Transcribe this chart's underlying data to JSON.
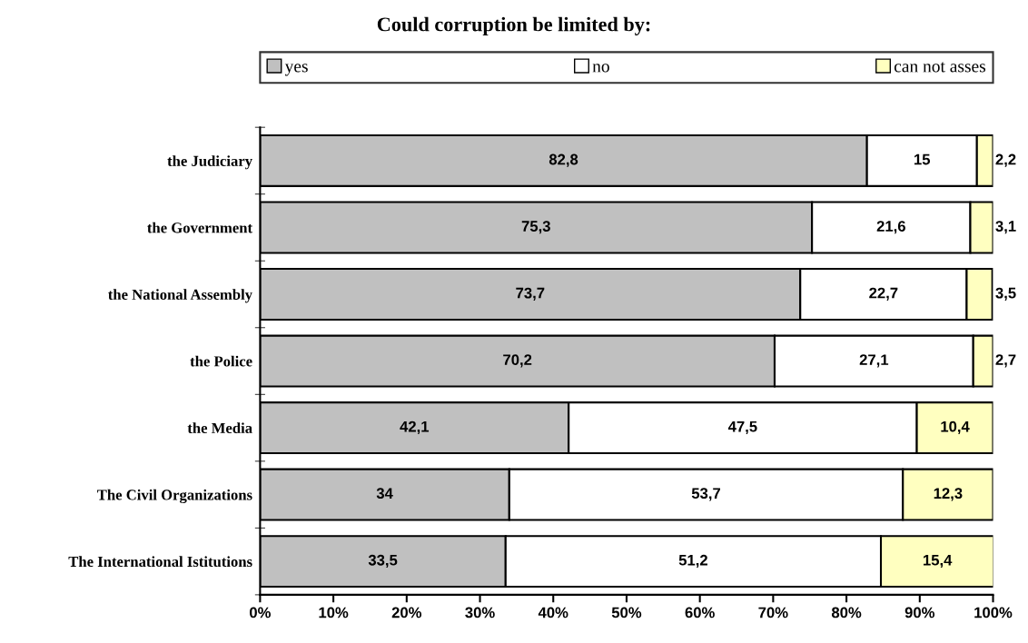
{
  "chart_data": {
    "type": "bar",
    "orientation": "horizontal",
    "stacked": true,
    "title": "Could corruption be limited by:",
    "categories": [
      "the Judiciary",
      "the Government",
      "the National Assembly",
      "the Police",
      "the Media",
      "The Civil Organizations",
      "The International Istitutions"
    ],
    "series": [
      {
        "name": "yes",
        "color": "#c0c0c0",
        "values": [
          82.8,
          75.3,
          73.7,
          70.2,
          42.1,
          34,
          33.5
        ],
        "value_labels": [
          "82,8",
          "75,3",
          "73,7",
          "70,2",
          "42,1",
          "34",
          "33,5"
        ]
      },
      {
        "name": "no",
        "color": "#ffffff",
        "values": [
          15,
          21.6,
          22.7,
          27.1,
          47.5,
          53.7,
          51.2
        ],
        "value_labels": [
          "15",
          "21,6",
          "22,7",
          "27,1",
          "47,5",
          "53,7",
          "51,2"
        ]
      },
      {
        "name": "can not asses",
        "color": "#ffffc0",
        "values": [
          2.2,
          3.1,
          3.5,
          2.7,
          10.4,
          12.3,
          15.4
        ],
        "value_labels": [
          "2,2",
          "3,1",
          "3,5",
          "2,7",
          "10,4",
          "12,3",
          "15,4"
        ]
      }
    ],
    "xlim": [
      0,
      100
    ],
    "xticks": [
      {
        "value": 0,
        "label": "0%"
      },
      {
        "value": 10,
        "label": "10%"
      },
      {
        "value": 20,
        "label": "20%"
      },
      {
        "value": 30,
        "label": "30%"
      },
      {
        "value": 40,
        "label": "40%"
      },
      {
        "value": 50,
        "label": "50%"
      },
      {
        "value": 60,
        "label": "60%"
      },
      {
        "value": 70,
        "label": "70%"
      },
      {
        "value": 80,
        "label": "80%"
      },
      {
        "value": 90,
        "label": "90%"
      },
      {
        "value": 100,
        "label": "100%"
      }
    ],
    "legend": "top",
    "grid": false
  }
}
